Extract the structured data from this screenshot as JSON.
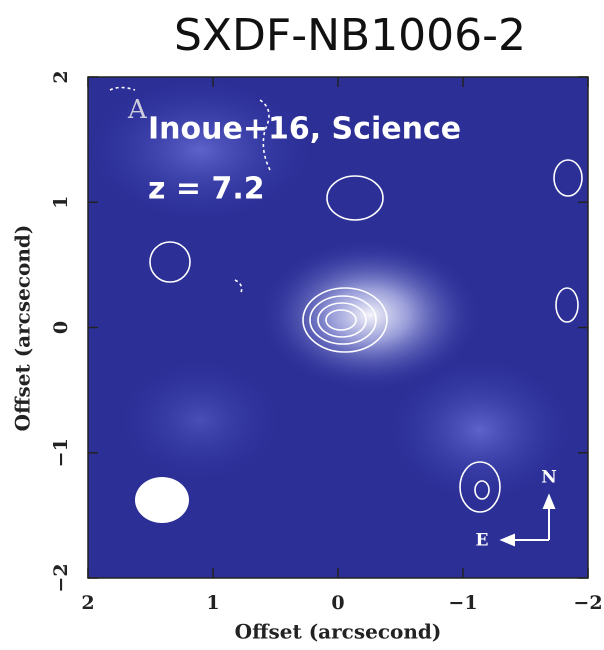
{
  "chart_data": {
    "type": "image",
    "title": "SXDF-NB1006-2",
    "xlabel": "Offset (arcsecond)",
    "ylabel": "Offset (arcsecond)",
    "annotations": [
      "Inoue+16, Science",
      "z = 7.2",
      "A",
      "N",
      "E"
    ],
    "xlim": [
      2,
      -2
    ],
    "ylim": [
      -2,
      2
    ],
    "xticks": [
      2,
      1,
      0,
      {
        "value": -1,
        "label": "−1"
      },
      {
        "value": -2,
        "label": "−2"
      }
    ],
    "yticks": [
      {
        "value": -2,
        "label": "−2"
      },
      {
        "value": -1,
        "label": "−1"
      },
      0,
      1,
      2
    ]
  }
}
